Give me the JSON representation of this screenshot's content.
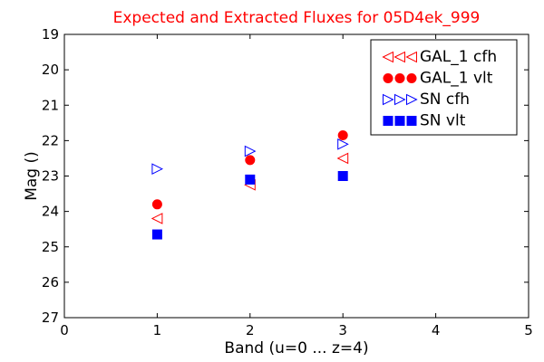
{
  "chart_data": {
    "type": "scatter",
    "title": "Expected and Extracted Fluxes for 05D4ek_999",
    "title_color": "#ff0000",
    "xlabel": "Band (u=0 ... z=4)",
    "ylabel": "Mag ()",
    "xlim": [
      0,
      5
    ],
    "ylim": [
      19,
      27
    ],
    "y_inverted": true,
    "grid": false,
    "legend_position": "top-right",
    "x_ticks": [
      "0",
      "1",
      "2",
      "3",
      "4",
      "5"
    ],
    "y_ticks": [
      "19",
      "20",
      "21",
      "22",
      "23",
      "24",
      "25",
      "26",
      "27"
    ],
    "series": [
      {
        "name": "GAL_1 cfh",
        "marker": "triangle-left",
        "color": "#ff0000",
        "filled": false,
        "points": [
          {
            "x": 1,
            "y": 24.2
          },
          {
            "x": 2,
            "y": 23.25
          },
          {
            "x": 3,
            "y": 22.5
          }
        ]
      },
      {
        "name": "GAL_1 vlt",
        "marker": "circle",
        "color": "#ff0000",
        "filled": true,
        "points": [
          {
            "x": 1,
            "y": 23.8
          },
          {
            "x": 2,
            "y": 22.55
          },
          {
            "x": 3,
            "y": 21.85
          }
        ]
      },
      {
        "name": "SN cfh",
        "marker": "triangle-right",
        "color": "#0000ff",
        "filled": false,
        "points": [
          {
            "x": 1,
            "y": 22.8
          },
          {
            "x": 2,
            "y": 22.3
          },
          {
            "x": 3,
            "y": 22.1
          }
        ]
      },
      {
        "name": "SN vlt",
        "marker": "square",
        "color": "#0000ff",
        "filled": true,
        "points": [
          {
            "x": 1,
            "y": 24.65
          },
          {
            "x": 2,
            "y": 23.1
          },
          {
            "x": 3,
            "y": 23.0
          }
        ]
      }
    ]
  }
}
